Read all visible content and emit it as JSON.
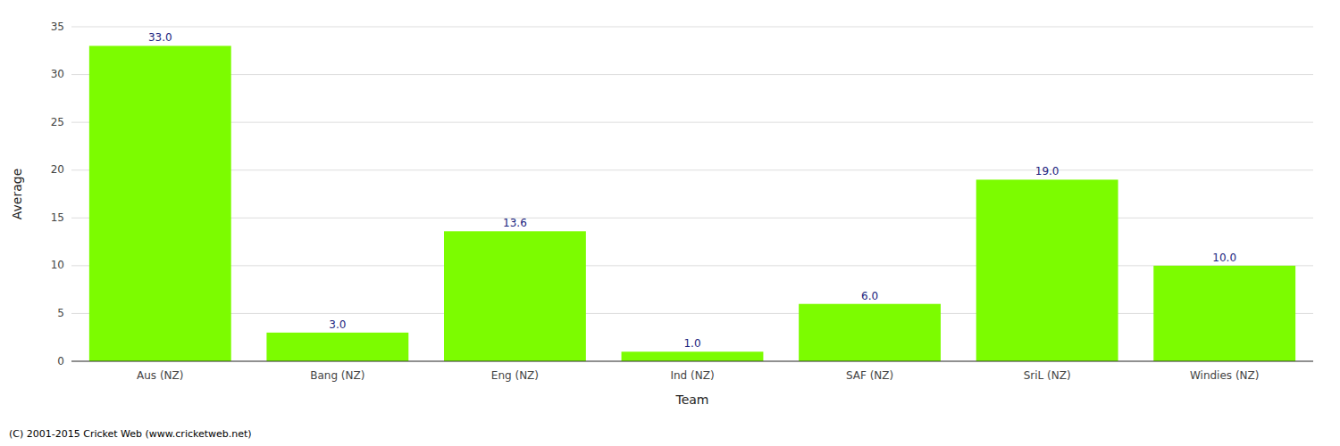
{
  "chart_data": {
    "type": "bar",
    "categories": [
      "Aus (NZ)",
      "Bang (NZ)",
      "Eng (NZ)",
      "Ind (NZ)",
      "SAF (NZ)",
      "SriL (NZ)",
      "Windies (NZ)"
    ],
    "values": [
      33.0,
      3.0,
      13.6,
      1.0,
      6.0,
      19.0,
      10.0
    ],
    "value_labels": [
      "33.0",
      "3.0",
      "13.6",
      "1.0",
      "6.0",
      "19.0",
      "10.0"
    ],
    "data_labels": true,
    "color": "#7CFC00",
    "x_label": "Team",
    "y_label": "Average",
    "ylim": [
      0,
      35
    ],
    "yticks": [
      0,
      5,
      10,
      15,
      20,
      25,
      30,
      35
    ],
    "grid": true,
    "annotations": [
      "(C) 2001-2015 Cricket Web (www.cricketweb.net)"
    ]
  }
}
